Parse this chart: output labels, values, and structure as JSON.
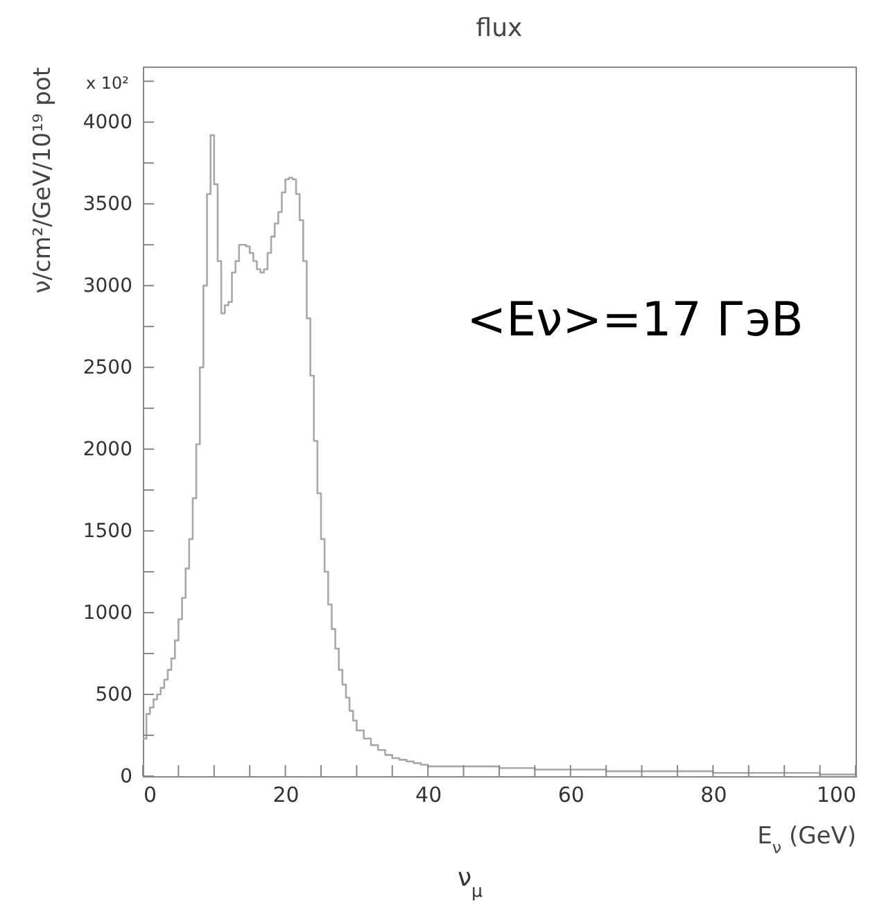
{
  "chart_data": {
    "type": "step",
    "title": "flux",
    "xlabel": "E$_{ν}$ (GeV)",
    "ylabel": "ν/cm²/GeV/10¹⁹ pot",
    "color": "#a8a8a8",
    "marker": "none",
    "annotations": [
      "x 10²",
      "<Eν>=17 ГэВ",
      "ν$_{μ}$"
    ],
    "x": [
      0,
      0.5,
      1,
      1.5,
      2,
      2.5,
      3,
      3.5,
      4,
      4.5,
      5,
      5.5,
      6,
      6.5,
      7,
      7.5,
      8,
      8.5,
      9,
      9.5,
      10,
      10.5,
      11,
      11.5,
      12,
      12.5,
      13,
      13.5,
      14,
      14.5,
      15,
      15.5,
      16,
      16.5,
      17,
      17.5,
      18,
      18.5,
      19,
      19.5,
      20,
      20.5,
      21,
      21.5,
      22,
      22.5,
      23,
      23.5,
      24,
      24.5,
      25,
      25.5,
      26,
      26.5,
      27,
      27.5,
      28,
      28.5,
      29,
      29.5,
      30,
      31,
      32,
      33,
      34,
      35,
      36,
      37,
      38,
      39,
      40,
      45,
      50,
      55,
      60,
      65,
      70,
      75,
      80,
      85,
      90,
      95,
      100
    ],
    "values": [
      230,
      380,
      420,
      470,
      500,
      540,
      590,
      650,
      720,
      830,
      960,
      1090,
      1270,
      1450,
      1700,
      2030,
      2500,
      3000,
      3560,
      3920,
      3620,
      3150,
      2830,
      2880,
      2900,
      3080,
      3150,
      3250,
      3250,
      3240,
      3200,
      3150,
      3100,
      3080,
      3100,
      3200,
      3300,
      3380,
      3450,
      3570,
      3650,
      3660,
      3650,
      3560,
      3400,
      3150,
      2800,
      2450,
      2050,
      1730,
      1450,
      1250,
      1050,
      900,
      780,
      650,
      560,
      480,
      400,
      340,
      280,
      230,
      190,
      160,
      130,
      110,
      100,
      90,
      80,
      70,
      60,
      60,
      50,
      40,
      40,
      30,
      30,
      30,
      20,
      20,
      20,
      10,
      10
    ],
    "xlim": [
      0,
      100
    ],
    "xticks": [
      0,
      {
        "value": 5,
        "label": null
      },
      {
        "value": 10,
        "label": null
      },
      {
        "value": 15,
        "label": null
      },
      20,
      {
        "value": 25,
        "label": null
      },
      {
        "value": 30,
        "label": null
      },
      {
        "value": 35,
        "label": null
      },
      40,
      {
        "value": 45,
        "label": null
      },
      {
        "value": 50,
        "label": null
      },
      {
        "value": 55,
        "label": null
      },
      60,
      {
        "value": 65,
        "label": null
      },
      {
        "value": 70,
        "label": null
      },
      {
        "value": 75,
        "label": null
      },
      80,
      {
        "value": 85,
        "label": null
      },
      {
        "value": 90,
        "label": null
      },
      {
        "value": 95,
        "label": null
      },
      100
    ],
    "ylim": [
      0,
      4340
    ],
    "yticks": [
      0,
      {
        "value": 250,
        "label": null
      },
      500,
      {
        "value": 750,
        "label": null
      },
      1000,
      {
        "value": 1250,
        "label": null
      },
      1500,
      {
        "value": 1750,
        "label": null
      },
      2000,
      {
        "value": 2250,
        "label": null
      },
      2500,
      {
        "value": 2750,
        "label": null
      },
      3000,
      {
        "value": 3250,
        "label": null
      },
      3500,
      {
        "value": 3750,
        "label": null
      },
      4000,
      {
        "value": 4250,
        "label": null
      }
    ]
  }
}
